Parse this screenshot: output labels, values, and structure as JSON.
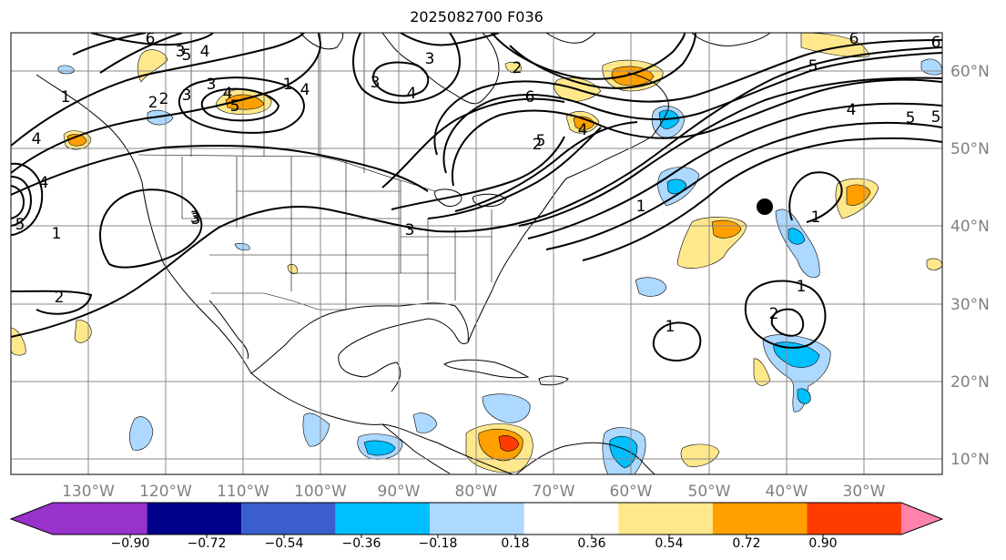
{
  "title": "2025082700 F036",
  "axes": {
    "lon_labels": [
      "130°W",
      "120°W",
      "110°W",
      "100°W",
      "90°W",
      "80°W",
      "70°W",
      "60°W",
      "50°W",
      "40°W",
      "30°W"
    ],
    "lat_labels": [
      "60°N",
      "50°N",
      "40°N",
      "30°N",
      "20°N",
      "10°N"
    ],
    "label_color": "#808080"
  },
  "colorbar": {
    "tick_labels": [
      "−0.90",
      "−0.72",
      "−0.54",
      "−0.36",
      "−0.18",
      "0.18",
      "0.36",
      "0.54",
      "0.72",
      "0.90"
    ],
    "bins": [
      "#9932cc",
      "#00008b",
      "#3a5fcd",
      "#00bfff",
      "#add8ff",
      "#ffffff",
      "#ffe88c",
      "#ffa000",
      "#ff3c00",
      "#b22222",
      "#ff82ab"
    ]
  },
  "contour_labels": [
    "6",
    "6",
    "5",
    "4",
    "4",
    "2",
    "3",
    "5",
    "3",
    "2",
    "3",
    "4",
    "1",
    "4",
    "4",
    "4",
    "5",
    "3",
    "6",
    "1",
    "2",
    "1",
    "2",
    "5",
    "3",
    "1",
    "1",
    "1",
    "1",
    "2",
    "3",
    "4",
    "5",
    "5",
    "6",
    "5",
    "4",
    "3",
    "3",
    "2"
  ],
  "marker": "storm-position-dot"
}
